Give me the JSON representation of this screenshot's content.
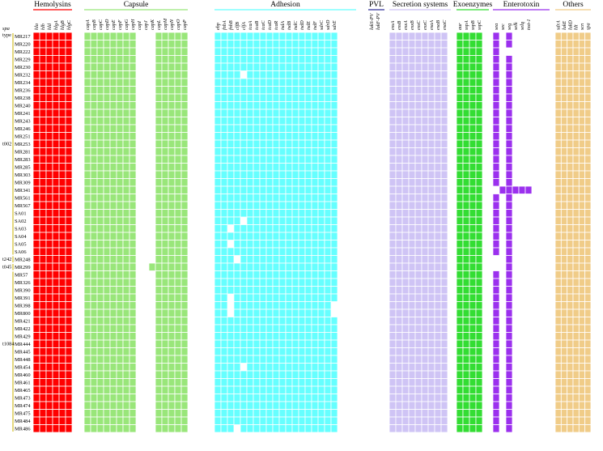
{
  "chart_data": {
    "type": "heatmap",
    "row_header_italic": "spa",
    "row_header": "type",
    "rows": [
      "MR217",
      "MR220",
      "MR222",
      "MR229",
      "MR230",
      "MR232",
      "MR234",
      "MR236",
      "MR238",
      "MR240",
      "MR241",
      "MR243",
      "MR246",
      "MR251",
      "MR253",
      "MR281",
      "MR283",
      "MR285",
      "MR303",
      "MR309",
      "MR341",
      "MR561",
      "MR567",
      "SA01",
      "SA02",
      "SA03",
      "SA04",
      "SA05",
      "SA06",
      "MR248",
      "MR299",
      "MR57",
      "MR326",
      "MR390",
      "MR391",
      "MR398",
      "MR800",
      "MR421",
      "MR422",
      "MR429",
      "MR444",
      "MR445",
      "MR448",
      "MR454",
      "MR460",
      "MR461",
      "MR465",
      "MR473",
      "MR474",
      "MR475",
      "MR484",
      "MR486"
    ],
    "spa_types": [
      {
        "label": "t002",
        "start": 0,
        "end": 28,
        "label_row": 14
      },
      {
        "label": "t242",
        "start": 29,
        "end": 29,
        "label_row": 29
      },
      {
        "label": "t045",
        "start": 30,
        "end": 30,
        "label_row": 30
      },
      {
        "label": "t1084",
        "start": 31,
        "end": 51,
        "label_row": 40
      }
    ],
    "groups": [
      {
        "name": "Hemolysins",
        "color": "#ff0000",
        "line_color": "#ff0000",
        "genes": [
          "hla",
          "hlb",
          "hld",
          "hlgA",
          "hlgB",
          "hlgC"
        ]
      },
      {
        "name": "Capsule",
        "color": "#99e67a",
        "line_color": "#99e67a",
        "genes": [
          "capA",
          "capB",
          "capC",
          "capD",
          "capE",
          "capF",
          "capG",
          "capH",
          "capI",
          "capJ",
          "capK",
          "capL",
          "capM",
          "capN",
          "capO",
          "capP"
        ]
      },
      {
        "name": "Adhesion",
        "color": "#66ffff",
        "line_color": "#66ffff",
        "genes": [
          "ebp",
          "fnbA",
          "fnbB",
          "clfB",
          "clfA",
          "icaA",
          "icaB",
          "icaC",
          "icaD",
          "icaR",
          "isdA",
          "isdB",
          "isdC",
          "isdD",
          "isdE",
          "isdF",
          "sdrC",
          "sdrD",
          "sdrE"
        ]
      },
      {
        "name": "PVL",
        "color": "#5b2fa0",
        "line_color": "#33339a",
        "genes": [
          "lukS-PV",
          "lukF-PV"
        ]
      },
      {
        "name": "Secretion systems",
        "color": "#cfc4f5",
        "line_color": "#cfc4f5",
        "genes": [
          "essA",
          "essB",
          "esxA",
          "esxB",
          "essC",
          "esxC",
          "esaA",
          "esaB",
          "esaC"
        ]
      },
      {
        "name": "Exoenzymes",
        "color": "#33dd33",
        "line_color": "#33dd33",
        "genes": [
          "aur",
          "sspA",
          "sspB",
          "sspC"
        ]
      },
      {
        "name": "Enterotoxin",
        "color": "#9b30ee",
        "line_color": "#9b30ee",
        "genes": [
          "sea",
          "sec",
          "seg",
          "selk",
          "selq",
          "tsst-1"
        ]
      },
      {
        "name": "Others",
        "color": "#f0cc88",
        "line_color": "#f0cc88",
        "genes": [
          "sdrA",
          "lukE",
          "lukD",
          "hlt",
          "scn",
          "spa"
        ]
      }
    ],
    "absent_columns": [
      "capI",
      "capJ",
      "capK",
      "lukS-PV",
      "lukF-PV",
      "sec",
      "selk",
      "selq",
      "tsst-1"
    ],
    "exceptions": {
      "capK": {
        "present": [
          "MR299"
        ]
      },
      "sea": {
        "absent": [
          "MR341",
          "MR248",
          "MR299"
        ]
      },
      "seg": {
        "absent": [
          "MR222"
        ]
      },
      "sec": {
        "present": [
          "MR341"
        ]
      },
      "selk": {
        "present": [
          "MR341"
        ]
      },
      "selq": {
        "present": [
          "MR341"
        ]
      },
      "tsst-1": {
        "present": [
          "MR341"
        ]
      },
      "clfA": {
        "absent": [
          "MR232",
          "SA02",
          "MR454"
        ]
      },
      "fnbB": {
        "absent": [
          "SA03",
          "SA05",
          "MR391",
          "MR398",
          "MR800"
        ]
      },
      "clfB": {
        "absent": [
          "MR248",
          "MR486"
        ]
      },
      "sdrE": {
        "absent": [
          "MR398",
          "MR800"
        ]
      }
    }
  }
}
